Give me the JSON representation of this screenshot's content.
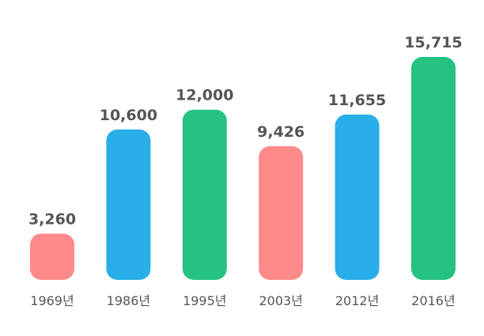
{
  "chart_data": {
    "type": "bar",
    "categories": [
      "1969년",
      "1986년",
      "1995년",
      "2003년",
      "2012년",
      "2016년"
    ],
    "values": [
      3260,
      10600,
      12000,
      9426,
      11655,
      15715
    ],
    "value_labels": [
      "3,260",
      "10,600",
      "12,000",
      "9,426",
      "11,655",
      "15,715"
    ],
    "bar_colors": [
      "#FF8A8A",
      "#29AEE9",
      "#26C281",
      "#FF8A8A",
      "#29AEE9",
      "#26C281"
    ],
    "title": "",
    "xlabel": "",
    "ylabel": "",
    "ylim": [
      0,
      16000
    ],
    "grid": false,
    "legend": "none"
  }
}
